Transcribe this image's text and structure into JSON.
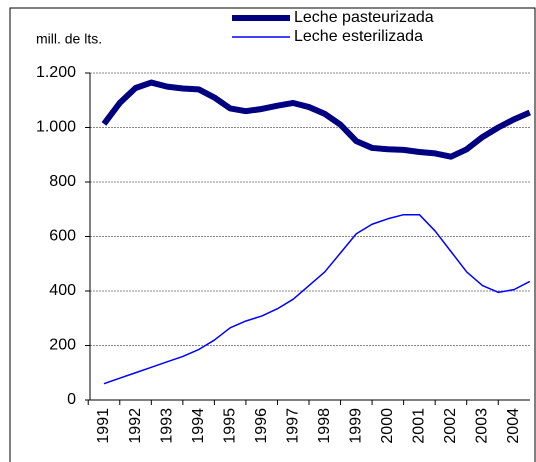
{
  "chart_data": {
    "type": "line",
    "y_label": "mill. de lts.",
    "x": [
      1991,
      1991.5,
      1992,
      1992.5,
      1993,
      1993.5,
      1994,
      1994.5,
      1995,
      1995.5,
      1996,
      1996.5,
      1997,
      1997.5,
      1998,
      1998.5,
      1999,
      1999.5,
      2000,
      2000.5,
      2001,
      2001.5,
      2002,
      2002.5,
      2003,
      2003.5,
      2004,
      2004.5
    ],
    "series": [
      {
        "name": "Leche pasteurizada",
        "color": "#000080",
        "width": 6,
        "values": [
          1013,
          1090,
          1145,
          1165,
          1150,
          1143,
          1140,
          1110,
          1070,
          1060,
          1068,
          1080,
          1090,
          1075,
          1050,
          1010,
          950,
          925,
          920,
          918,
          910,
          905,
          893,
          920,
          965,
          1000,
          1030,
          1055
        ]
      },
      {
        "name": "Leche esterilizada",
        "color": "#0000ff",
        "width": 1.5,
        "values": [
          60,
          80,
          100,
          120,
          140,
          160,
          185,
          220,
          265,
          290,
          308,
          335,
          370,
          420,
          470,
          540,
          610,
          645,
          665,
          680,
          680,
          620,
          545,
          470,
          420,
          395,
          405,
          435
        ]
      }
    ],
    "xlim": [
      1990.5,
      2004.5
    ],
    "xticks": [
      1991,
      1992,
      1993,
      1994,
      1995,
      1996,
      1997,
      1998,
      1999,
      2000,
      2001,
      2002,
      2003,
      2004
    ],
    "ylim": [
      0,
      1200
    ],
    "yticks": [
      0,
      200,
      {
        "value": 400,
        "label": "400"
      },
      600,
      800,
      {
        "value": 1000,
        "label": "1.000"
      },
      {
        "value": 1200,
        "label": "1.200"
      }
    ],
    "grid": true
  }
}
